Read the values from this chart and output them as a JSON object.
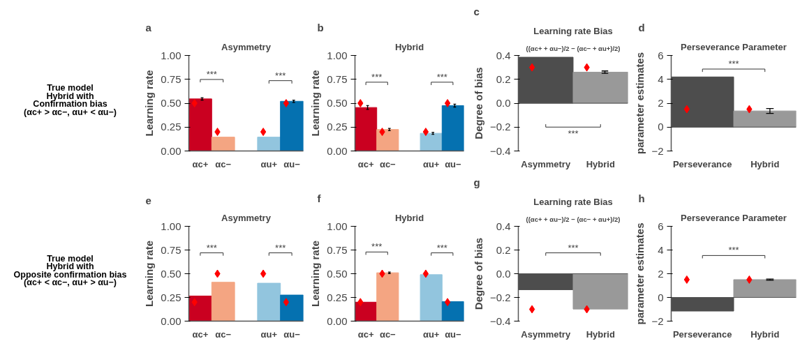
{
  "chart_data": [
    {
      "type": "other",
      "annotations": [
        "True model",
        "Hybrid with",
        "Confirmation bias",
        "(αc+ > αc−, αu+ < αu−)"
      ]
    },
    {
      "type": "bar",
      "title": "Asymmetry",
      "ylabel": "Learning rate",
      "categories": [
        "αc+",
        "αc−",
        null,
        "αu+",
        "αu−"
      ],
      "ylim": [
        0,
        1
      ],
      "yticks": [
        {
          "value": 0,
          "label": "0.00"
        },
        {
          "value": 0.25,
          "label": "0.25"
        },
        {
          "value": 0.5,
          "label": "0.50"
        },
        {
          "value": 0.75,
          "label": "0.75"
        },
        {
          "value": 1,
          "label": "1.00"
        }
      ],
      "grid": false,
      "marker": "diamond",
      "series": [
        {
          "type": "bar",
          "colors": [
            "#ca0020",
            "#f4a582",
            null,
            "#92c5de",
            "#0571b0"
          ],
          "values": [
            0.545,
            0.145,
            null,
            0.145,
            0.52
          ],
          "errors": [
            0.012,
            null,
            null,
            null,
            0.012
          ]
        },
        {
          "type": "scatter",
          "color": "#ff0000",
          "values": [
            0.5,
            0.2,
            null,
            0.2,
            0.5
          ]
        }
      ],
      "annotations": [
        "a",
        "***",
        "***"
      ]
    },
    {
      "type": "bar",
      "title": "Hybrid",
      "ylabel": "Learning rate",
      "categories": [
        "αc+",
        "αc−",
        null,
        "αu+",
        "αu−"
      ],
      "ylim": [
        0,
        1
      ],
      "yticks": [
        {
          "value": 0,
          "label": "0.00"
        },
        {
          "value": 0.25,
          "label": "0.25"
        },
        {
          "value": 0.5,
          "label": "0.50"
        },
        {
          "value": 0.75,
          "label": "0.75"
        },
        {
          "value": 1,
          "label": "1.00"
        }
      ],
      "grid": false,
      "marker": "diamond",
      "series": [
        {
          "type": "bar",
          "colors": [
            "#ca0020",
            "#f4a582",
            null,
            "#92c5de",
            "#0571b0"
          ],
          "values": [
            0.455,
            0.225,
            null,
            0.185,
            0.475
          ],
          "errors": [
            0.02,
            0.012,
            null,
            0.01,
            0.015
          ]
        },
        {
          "type": "scatter",
          "color": "#ff0000",
          "values": [
            0.5,
            0.2,
            null,
            0.2,
            0.5
          ]
        }
      ],
      "annotations": [
        "b",
        "***",
        "***"
      ]
    },
    {
      "type": "bar",
      "title": "Learning rate Bias",
      "subtitle": "((αc+ + αu−)/2 − (αc− + αu+)/2)",
      "ylabel": "Degree of bias",
      "categories": [
        "Asymmetry",
        "Hybrid"
      ],
      "ylim": [
        -0.4,
        0.4
      ],
      "yticks": [
        {
          "value": -0.4,
          "label": "−0.4"
        },
        {
          "value": -0.2,
          "label": "−0.2"
        },
        {
          "value": 0,
          "label": "0.0"
        },
        {
          "value": 0.2,
          "label": "0.2"
        },
        {
          "value": 0.4,
          "label": "0.4"
        }
      ],
      "grid": false,
      "marker": "diamond",
      "ref_lines": [
        {
          "axis": "y",
          "value": 0
        }
      ],
      "series": [
        {
          "type": "bar",
          "colors": [
            "#4d4d4d",
            "#999999"
          ],
          "values": [
            0.385,
            0.26
          ],
          "errors": [
            null,
            0.01
          ]
        },
        {
          "type": "scatter",
          "color": "#ff0000",
          "values": [
            0.3,
            0.3
          ]
        }
      ],
      "annotations": [
        "c",
        "***"
      ]
    },
    {
      "type": "bar",
      "title": "Perseverance Parameter",
      "ylabel": "parameter estimates",
      "categories": [
        "Perseverance",
        "Hybrid"
      ],
      "ylim": [
        -2,
        6
      ],
      "yticks": [
        {
          "value": -2,
          "label": "−2"
        },
        0,
        2,
        4,
        6
      ],
      "grid": false,
      "marker": "diamond",
      "ref_lines": [
        {
          "axis": "y",
          "value": 0
        }
      ],
      "series": [
        {
          "type": "bar",
          "colors": [
            "#4d4d4d",
            "#999999"
          ],
          "values": [
            4.2,
            1.35
          ],
          "errors": [
            null,
            0.2
          ]
        },
        {
          "type": "scatter",
          "color": "#ff0000",
          "values": [
            1.5,
            1.5
          ]
        }
      ],
      "annotations": [
        "d",
        "***"
      ]
    },
    {
      "type": "other",
      "annotations": [
        "True model",
        "Hybrid with",
        "Opposite confirmation bias",
        "(αc+ < αc−, αu+ > αu−)"
      ]
    },
    {
      "type": "bar",
      "title": "Asymmetry",
      "ylabel": "Learning rate",
      "categories": [
        "αc+",
        "αc−",
        null,
        "αu+",
        "αu−"
      ],
      "ylim": [
        0,
        1
      ],
      "yticks": [
        {
          "value": 0,
          "label": "0.00"
        },
        {
          "value": 0.25,
          "label": "0.25"
        },
        {
          "value": 0.5,
          "label": "0.50"
        },
        {
          "value": 0.75,
          "label": "0.75"
        },
        {
          "value": 1,
          "label": "1.00"
        }
      ],
      "grid": false,
      "marker": "diamond",
      "series": [
        {
          "type": "bar",
          "colors": [
            "#ca0020",
            "#f4a582",
            null,
            "#92c5de",
            "#0571b0"
          ],
          "values": [
            0.265,
            0.41,
            null,
            0.4,
            0.275
          ]
        },
        {
          "type": "scatter",
          "color": "#ff0000",
          "values": [
            0.2,
            0.5,
            null,
            0.5,
            0.2
          ]
        }
      ],
      "annotations": [
        "e",
        "***",
        "***"
      ]
    },
    {
      "type": "bar",
      "title": "Hybrid",
      "ylabel": "Learning rate",
      "categories": [
        "αc+",
        "αc−",
        null,
        "αu+",
        "αu−"
      ],
      "ylim": [
        0,
        1
      ],
      "yticks": [
        {
          "value": 0,
          "label": "0.00"
        },
        {
          "value": 0.25,
          "label": "0.25"
        },
        {
          "value": 0.5,
          "label": "0.50"
        },
        {
          "value": 0.75,
          "label": "0.75"
        },
        {
          "value": 1,
          "label": "1.00"
        }
      ],
      "grid": false,
      "marker": "diamond",
      "series": [
        {
          "type": "bar",
          "colors": [
            "#ca0020",
            "#f4a582",
            null,
            "#92c5de",
            "#0571b0"
          ],
          "values": [
            0.2,
            0.51,
            null,
            0.49,
            0.205
          ],
          "errors": [
            null,
            0.008,
            null,
            null,
            null
          ]
        },
        {
          "type": "scatter",
          "color": "#ff0000",
          "values": [
            0.2,
            0.5,
            null,
            0.5,
            0.2
          ]
        }
      ],
      "annotations": [
        "f",
        "***",
        "***"
      ]
    },
    {
      "type": "bar",
      "title": "Learning rate Bias",
      "subtitle": "((αc+ + αu−)/2 − (αc− + αu+)/2)",
      "ylabel": "Degree of bias",
      "categories": [
        "Asymmetry",
        "Hybrid"
      ],
      "ylim": [
        -0.4,
        0.4
      ],
      "yticks": [
        {
          "value": -0.4,
          "label": "−0.4"
        },
        {
          "value": -0.2,
          "label": "−0.2"
        },
        {
          "value": 0,
          "label": "0.0"
        },
        {
          "value": 0.2,
          "label": "0.2"
        },
        {
          "value": 0.4,
          "label": "0.4"
        }
      ],
      "grid": false,
      "marker": "diamond",
      "ref_lines": [
        {
          "axis": "y",
          "value": 0
        }
      ],
      "series": [
        {
          "type": "bar",
          "colors": [
            "#4d4d4d",
            "#999999"
          ],
          "values": [
            -0.135,
            -0.298
          ]
        },
        {
          "type": "scatter",
          "color": "#ff0000",
          "values": [
            -0.3,
            -0.3
          ]
        }
      ],
      "annotations": [
        "g",
        "***"
      ]
    },
    {
      "type": "bar",
      "title": "Perseverance Parameter",
      "ylabel": "parameter estimates",
      "categories": [
        "Perseverance",
        "Hybrid"
      ],
      "ylim": [
        -2,
        6
      ],
      "yticks": [
        {
          "value": -2,
          "label": "−2"
        },
        0,
        2,
        4,
        6
      ],
      "grid": false,
      "marker": "diamond",
      "ref_lines": [
        {
          "axis": "y",
          "value": 0
        }
      ],
      "series": [
        {
          "type": "bar",
          "colors": [
            "#4d4d4d",
            "#999999"
          ],
          "values": [
            -1.15,
            1.5
          ],
          "errors": [
            null,
            0.05
          ]
        },
        {
          "type": "scatter",
          "color": "#ff0000",
          "values": [
            1.5,
            1.5
          ]
        }
      ],
      "annotations": [
        "h",
        "***"
      ]
    }
  ]
}
